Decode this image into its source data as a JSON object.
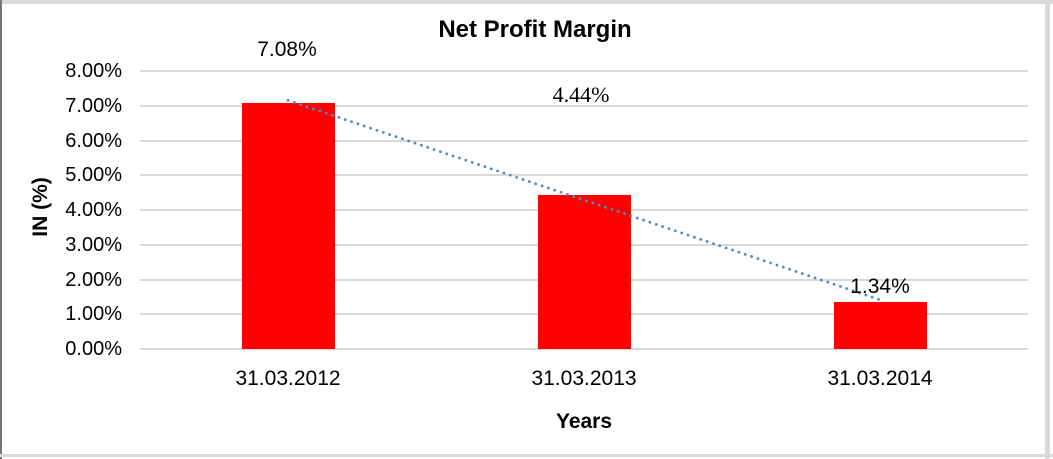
{
  "chart_data": {
    "type": "bar",
    "title": "Net Profit Margin",
    "xlabel": "Years",
    "ylabel": "IN (%)",
    "categories": [
      "31.03.2012",
      "31.03.2013",
      "31.03.2014"
    ],
    "values": [
      7.08,
      4.44,
      1.34
    ],
    "data_labels": [
      "7.08%",
      "4.44%",
      "1.34%"
    ],
    "yticks": [
      "8.00%",
      "7.00%",
      "6.00%",
      "5.00%",
      "4.00%",
      "3.00%",
      "2.00%",
      "1.00%",
      "0.00%"
    ],
    "ylim": [
      0,
      8
    ],
    "grid": "horizontal-gridlines",
    "legend": "none",
    "bar_color": "#FF0000",
    "gridline_color": "#D9D9D9",
    "trendline": {
      "type": "linear",
      "style": "dotted",
      "color": "#5389CB"
    }
  }
}
